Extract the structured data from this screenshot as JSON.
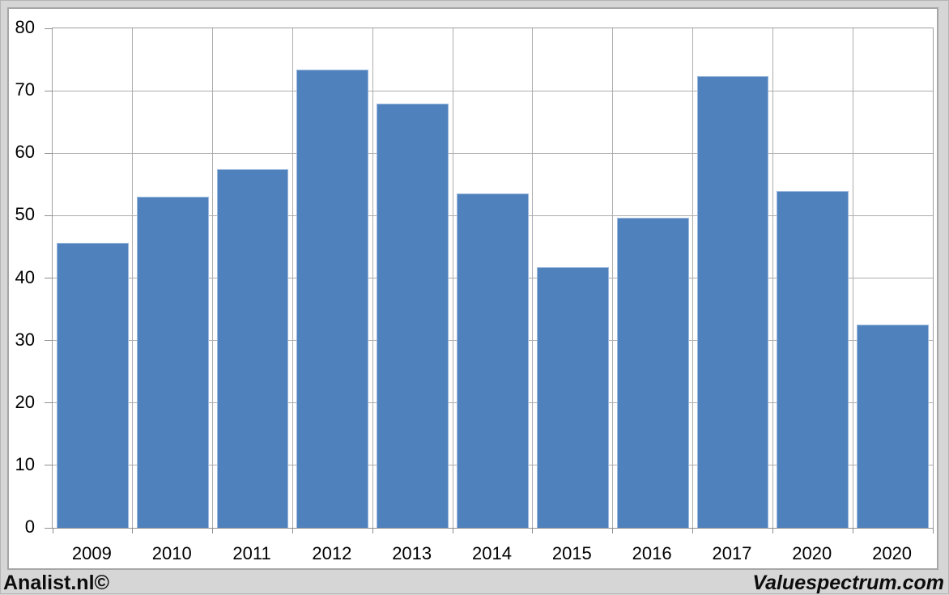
{
  "window": {
    "background_color": "#d6d6d6",
    "canvas_color": "#ffffff",
    "canvas_border_color": "#a6a6a6",
    "gridline_color": "#adadad",
    "axis_color": "#8f8f8f"
  },
  "chart_data": {
    "type": "bar",
    "title": "",
    "xlabel": "",
    "ylabel": "",
    "categories": [
      "2009",
      "2010",
      "2011",
      "2012",
      "2013",
      "2014",
      "2015",
      "2016",
      "2017",
      "2020",
      "2020"
    ],
    "values": [
      45.6,
      53.0,
      57.4,
      73.4,
      68.0,
      53.6,
      41.7,
      49.6,
      72.3,
      53.9,
      32.6
    ],
    "ylim": [
      0,
      80
    ],
    "yticks": [
      0,
      10,
      20,
      30,
      40,
      50,
      60,
      70,
      80
    ],
    "grid": true,
    "legend": false,
    "bar_color": "#4f81bd",
    "bar_edge_color": "#9db9dd"
  },
  "footer": {
    "left_text": "Analist.nl©",
    "right_text": "Valuespectrum.com"
  }
}
